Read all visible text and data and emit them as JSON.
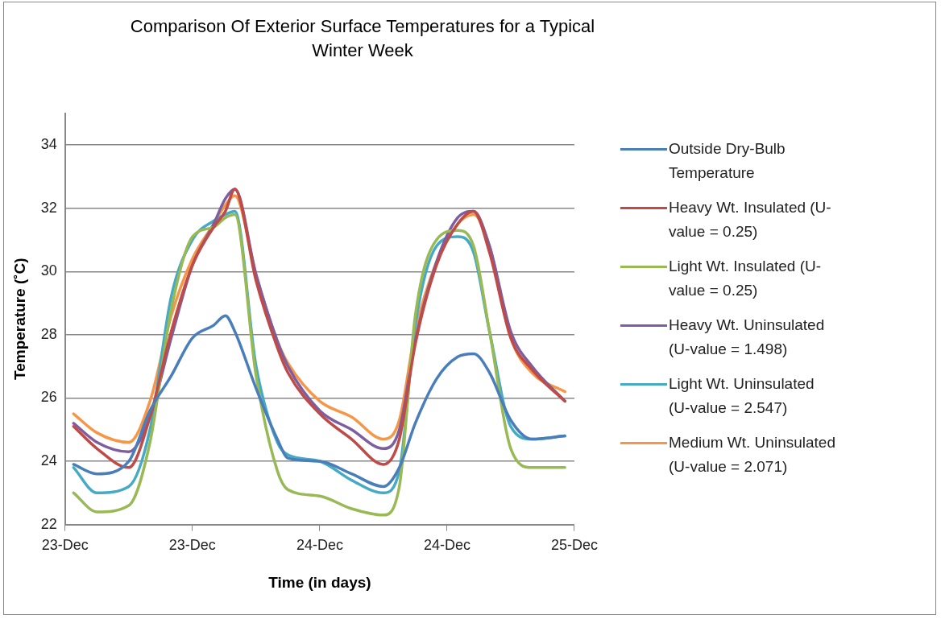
{
  "chart_data": {
    "type": "line",
    "title": "Comparison Of Exterior Surface Temperatures for a Typical Winter Week",
    "xlabel": "Time (in days)",
    "ylabel": "Temperature (˚C)",
    "x": [
      "--12-23T00:48",
      "--12-23T03:00",
      "--12-23T06:00",
      "--12-23T08:00",
      "--12-23T10:00",
      "--12-23T12:00",
      "--12-23T14:00",
      "--12-23T15:06",
      "--12-23T16:00",
      "--12-23T18:00",
      "--12-23T20:00",
      "--12-23T21:00",
      "--12-24T00:00",
      "--12-24T03:00",
      "--12-24T06:00",
      "--12-24T07:30",
      "--12-24T09:00",
      "--12-24T11:00",
      "--12-24T13:00",
      "--12-24T14:30",
      "--12-24T16:00",
      "--12-24T18:00",
      "--12-24T20:00",
      "--12-24T23:06"
    ],
    "series": [
      {
        "name": "Outside Dry-Bulb Temperature",
        "color": "#4a7ebb",
        "values": [
          23.9,
          23.6,
          24.0,
          25.6,
          26.7,
          27.9,
          28.3,
          28.6,
          28.1,
          26.3,
          24.7,
          24.1,
          24.0,
          23.6,
          23.2,
          23.8,
          25.2,
          26.6,
          27.3,
          27.4,
          26.8,
          25.3,
          24.7,
          24.8
        ]
      },
      {
        "name": "Heavy Wt. Insulated (U-value = 0.25)",
        "color": "#be4b48",
        "values": [
          25.1,
          24.4,
          23.8,
          25.4,
          28.1,
          30.2,
          31.4,
          31.9,
          32.6,
          29.7,
          27.6,
          26.8,
          25.5,
          24.7,
          23.9,
          24.7,
          27.7,
          30.2,
          31.5,
          31.9,
          30.6,
          27.9,
          26.9,
          25.9
        ]
      },
      {
        "name": "Light Wt. Insulated  (U-value = 0.25)",
        "color": "#98b954",
        "values": [
          23.0,
          22.4,
          22.6,
          24.6,
          28.8,
          31.1,
          31.4,
          31.7,
          31.8,
          26.7,
          23.7,
          23.1,
          22.9,
          22.5,
          22.3,
          23.2,
          28.6,
          31.0,
          31.3,
          30.8,
          28.1,
          24.4,
          23.8,
          23.8
        ]
      },
      {
        "name": "Heavy Wt. Uninsulated (U-value = 1.498)",
        "color": "#7d5fa0",
        "values": [
          25.2,
          24.6,
          24.3,
          25.4,
          27.9,
          30.2,
          31.5,
          32.3,
          32.6,
          29.9,
          27.8,
          27.0,
          25.6,
          25.0,
          24.4,
          25.0,
          27.8,
          30.3,
          31.7,
          31.9,
          30.8,
          28.1,
          27.0,
          25.9
        ]
      },
      {
        "name": "Light Wt. Uninsulated (U-value = 2.547)",
        "color": "#46aac5",
        "values": [
          23.8,
          23.0,
          23.2,
          25.0,
          29.2,
          31.0,
          31.6,
          31.8,
          31.9,
          27.0,
          24.6,
          24.2,
          24.0,
          23.4,
          23.0,
          23.7,
          28.3,
          30.8,
          31.1,
          30.6,
          28.1,
          25.1,
          24.7,
          24.8
        ]
      },
      {
        "name": "Medium Wt. Uninsulated (U-value = 2.071)",
        "color": "#f79646",
        "values": [
          25.5,
          24.9,
          24.6,
          25.9,
          28.6,
          30.4,
          31.5,
          32.1,
          32.4,
          29.9,
          27.8,
          27.1,
          25.9,
          25.4,
          24.7,
          25.3,
          28.1,
          30.3,
          31.5,
          31.8,
          30.8,
          27.9,
          26.8,
          26.2
        ]
      }
    ],
    "xlim": [
      "--12-23T00:00",
      "--12-25T00:00"
    ],
    "xticks": [
      {
        "value": "--12-23T00:00",
        "label": "23-Dec"
      },
      {
        "value": "--12-23T12:00",
        "label": "23-Dec"
      },
      {
        "value": "--12-24T00:00",
        "label": "24-Dec"
      },
      {
        "value": "--12-24T12:00",
        "label": "24-Dec"
      },
      {
        "value": "--12-25T00:00",
        "label": "25-Dec"
      }
    ],
    "ylim": [
      22,
      35
    ],
    "yticks": [
      22,
      24,
      26,
      28,
      30,
      32,
      34
    ],
    "grid": "y",
    "legend": "right",
    "marker": "none",
    "line_style": "solid"
  }
}
